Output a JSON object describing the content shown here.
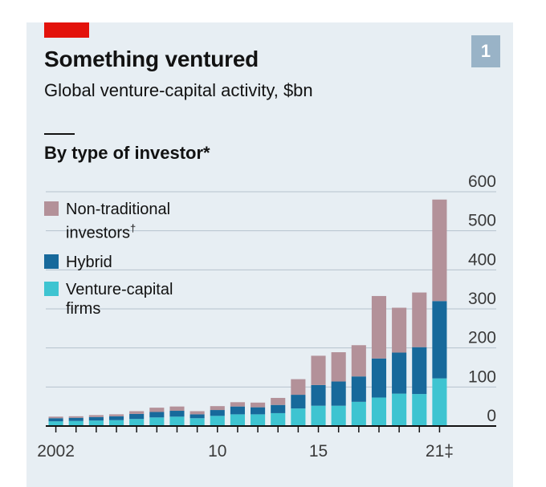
{
  "header": {
    "chart_number": "1",
    "title": "Something ventured",
    "subtitle": "Global venture-capital activity, $bn",
    "section_heading": "By type of investor*"
  },
  "legend": [
    {
      "label_line1": "Non-traditional",
      "label_line2": "investors",
      "mark": "†",
      "color": "#b39199"
    },
    {
      "label_line1": "Hybrid",
      "label_line2": "",
      "mark": "",
      "color": "#17699b"
    },
    {
      "label_line1": "Venture-capital",
      "label_line2": "firms",
      "mark": "",
      "color": "#3ec4d1"
    }
  ],
  "colors": {
    "background": "#e7eef3",
    "accent": "#e3120b",
    "gridline": "#b6c3cd",
    "baseline": "#121212"
  },
  "chart_data": {
    "type": "bar",
    "stacked": true,
    "title": "Something ventured",
    "subtitle": "Global venture-capital activity, $bn",
    "categories": [
      "2002",
      "2003",
      "2004",
      "2005",
      "2006",
      "2007",
      "2008",
      "2009",
      "2010",
      "2011",
      "2012",
      "2013",
      "2014",
      "2015",
      "2016",
      "2017",
      "2018",
      "2019",
      "2020",
      "2021"
    ],
    "x_tick_labels": [
      "2002",
      "",
      "",
      "",
      "",
      "",
      "",
      "",
      "10",
      "",
      "",
      "",
      "",
      "15",
      "",
      "",
      "",
      "",
      "",
      "21‡"
    ],
    "series": [
      {
        "name": "Venture-capital firms",
        "color": "#3ec4d1",
        "values": [
          12,
          13,
          14,
          15,
          18,
          22,
          24,
          20,
          26,
          30,
          30,
          33,
          45,
          52,
          52,
          62,
          73,
          83,
          82,
          122
        ]
      },
      {
        "name": "Hybrid",
        "color": "#17699b",
        "values": [
          8,
          8,
          9,
          10,
          13,
          14,
          15,
          10,
          15,
          20,
          18,
          21,
          35,
          53,
          62,
          65,
          100,
          105,
          120,
          198
        ]
      },
      {
        "name": "Non-traditional investors†",
        "color": "#b39199",
        "values": [
          4,
          4,
          5,
          5,
          7,
          11,
          11,
          8,
          10,
          11,
          12,
          18,
          40,
          75,
          75,
          80,
          160,
          115,
          140,
          260
        ]
      }
    ],
    "ylim": [
      0,
      600
    ],
    "yticks": [
      0,
      100,
      200,
      300,
      400,
      500,
      600
    ],
    "y_axis_position": "right",
    "grid": true,
    "legend_position": "top-left"
  },
  "footnote_marks": {
    "non_traditional": "†",
    "year_2021": "‡",
    "heading": "*"
  }
}
